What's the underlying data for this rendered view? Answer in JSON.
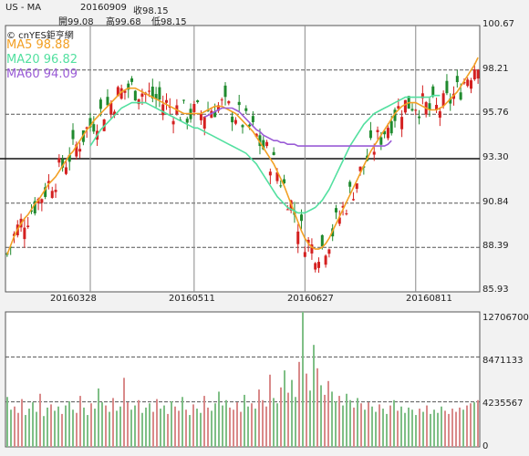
{
  "header": {
    "symbol": "US - MA",
    "date": "20160909",
    "close_label": "收98.15",
    "open_label": "開99.08",
    "high_label": "高99.68",
    "low_label": "低98.15"
  },
  "chart_data": [
    {
      "type": "candlestick",
      "brand": "© cnYES鉅亨網",
      "legend": [
        {
          "label": "MA5 98.88",
          "color": "#f2a024"
        },
        {
          "label": "MA20 96.82",
          "color": "#53e0a0"
        },
        {
          "label": "MA60 94.09",
          "color": "#9a5cd6"
        }
      ],
      "ylim": [
        85.93,
        100.67
      ],
      "yticks": [
        "100.67",
        "98.21",
        "95.76",
        "93.30",
        "90.84",
        "88.39",
        "85.93"
      ],
      "reference_line": 93.3,
      "xticks": [
        {
          "label": "20160328",
          "index": 24
        },
        {
          "label": "20160511",
          "index": 54
        },
        {
          "label": "20160627",
          "index": 86
        },
        {
          "label": "20160811",
          "index": 118
        }
      ],
      "series": [
        {
          "name": "MA5",
          "values": [
            88.0,
            88.5,
            89.0,
            89.4,
            89.7,
            90.0,
            90.2,
            90.5,
            90.8,
            91.0,
            91.3,
            91.6,
            91.9,
            92.1,
            92.3,
            92.6,
            92.9,
            93.2,
            93.5,
            93.7,
            94.0,
            94.3,
            94.6,
            94.9,
            95.1,
            95.4,
            95.6,
            95.8,
            96.0,
            96.2,
            96.4,
            96.6,
            96.8,
            97.0,
            97.1,
            97.2,
            97.2,
            97.2,
            97.1,
            97.0,
            96.9,
            96.8,
            96.7,
            96.6,
            96.5,
            96.4,
            96.3,
            96.2,
            96.1,
            96.0,
            95.9,
            95.8,
            95.8,
            95.8,
            95.8,
            95.8,
            95.8,
            95.9,
            96.0,
            96.1,
            96.2,
            96.2,
            96.2,
            96.1,
            96.0,
            95.9,
            95.8,
            95.6,
            95.4,
            95.2,
            95.0,
            94.8,
            94.5,
            94.2,
            93.9,
            93.6,
            93.3,
            93.0,
            92.6,
            92.2,
            91.8,
            91.3,
            90.8,
            90.3,
            89.8,
            89.3,
            88.9,
            88.6,
            88.4,
            88.3,
            88.3,
            88.4,
            88.6,
            88.9,
            89.3,
            89.7,
            90.1,
            90.5,
            90.9,
            91.3,
            91.7,
            92.1,
            92.5,
            92.9,
            93.3,
            93.7,
            94.0,
            94.3,
            94.6,
            94.9,
            95.2,
            95.5,
            95.8,
            96.0,
            96.2,
            96.3,
            96.4,
            96.4,
            96.4,
            96.3,
            96.2,
            96.1,
            96.0,
            96.0,
            96.0,
            96.1,
            96.2,
            96.4,
            96.6,
            96.8,
            97.0,
            97.3,
            97.6,
            97.9,
            98.2,
            98.5,
            98.9
          ]
        },
        {
          "name": "MA20",
          "values": [
            null,
            null,
            null,
            null,
            null,
            null,
            null,
            null,
            null,
            null,
            null,
            null,
            null,
            null,
            null,
            null,
            null,
            null,
            null,
            null,
            null,
            null,
            null,
            null,
            94.0,
            94.3,
            94.6,
            94.9,
            95.1,
            95.3,
            95.5,
            95.7,
            95.9,
            96.1,
            96.2,
            96.3,
            96.4,
            96.4,
            96.4,
            96.4,
            96.4,
            96.3,
            96.2,
            96.1,
            96.0,
            95.9,
            95.8,
            95.7,
            95.6,
            95.5,
            95.4,
            95.3,
            95.2,
            95.1,
            95.0,
            95.0,
            94.9,
            94.8,
            94.7,
            94.6,
            94.5,
            94.4,
            94.3,
            94.2,
            94.1,
            94.0,
            93.9,
            93.8,
            93.7,
            93.6,
            93.4,
            93.2,
            93.0,
            92.7,
            92.4,
            92.1,
            91.8,
            91.5,
            91.2,
            91.0,
            90.8,
            90.6,
            90.5,
            90.4,
            90.3,
            90.3,
            90.3,
            90.4,
            90.5,
            90.6,
            90.8,
            91.0,
            91.3,
            91.6,
            92.0,
            92.4,
            92.8,
            93.2,
            93.6,
            94.0,
            94.3,
            94.6,
            94.9,
            95.2,
            95.4,
            95.6,
            95.8,
            95.9,
            96.0,
            96.1,
            96.2,
            96.3,
            96.4,
            96.5,
            96.6,
            96.7,
            96.7,
            96.7,
            96.7,
            96.7,
            96.7,
            96.7,
            96.7,
            96.8,
            96.8,
            96.8
          ]
        },
        {
          "name": "MA60",
          "values": [
            null,
            null,
            null,
            null,
            null,
            null,
            null,
            null,
            null,
            null,
            null,
            null,
            null,
            null,
            null,
            null,
            null,
            null,
            null,
            null,
            null,
            null,
            null,
            null,
            null,
            null,
            null,
            null,
            null,
            null,
            null,
            null,
            null,
            null,
            null,
            null,
            null,
            null,
            null,
            null,
            null,
            null,
            null,
            null,
            null,
            null,
            null,
            null,
            null,
            null,
            null,
            null,
            null,
            null,
            null,
            null,
            null,
            95.6,
            95.7,
            95.8,
            95.9,
            96.0,
            96.1,
            96.1,
            96.1,
            96.1,
            96.0,
            95.9,
            95.7,
            95.5,
            95.3,
            95.1,
            94.9,
            94.8,
            94.6,
            94.5,
            94.4,
            94.3,
            94.3,
            94.2,
            94.2,
            94.1,
            94.1,
            94.1,
            94.0,
            94.0,
            94.0,
            94.0,
            94.0,
            94.0,
            94.0,
            94.0,
            94.0,
            94.0,
            94.0,
            94.0,
            94.0,
            94.0,
            94.0,
            94.0,
            94.0,
            94.0,
            94.0,
            94.0,
            94.0,
            94.0,
            94.0,
            94.0,
            94.0,
            94.0,
            94.1,
            94.3
          ]
        }
      ]
    },
    {
      "type": "bar",
      "title": "volume",
      "ylim": [
        0,
        12706700
      ],
      "yticks": [
        "12706700",
        "8471133",
        "4235567",
        "0"
      ],
      "values": [
        4700000,
        3500000,
        3800000,
        3200000,
        4500000,
        3000000,
        3600000,
        4200000,
        3300000,
        5000000,
        2900000,
        3700000,
        4000000,
        3400000,
        3800000,
        3100000,
        3900000,
        4300000,
        3500000,
        3200000,
        4800000,
        3700000,
        3000000,
        4100000,
        3600000,
        5500000,
        4200000,
        3900000,
        3300000,
        4600000,
        3400000,
        3800000,
        6500000,
        4200000,
        3500000,
        3900000,
        4400000,
        3200000,
        3700000,
        4100000,
        3300000,
        4500000,
        3600000,
        3900000,
        3100000,
        4300000,
        3800000,
        3400000,
        4700000,
        3500000,
        3000000,
        4000000,
        3600000,
        3200000,
        4800000,
        3700000,
        3400000,
        4100000,
        5200000,
        3900000,
        4400000,
        3700000,
        3500000,
        4200000,
        3300000,
        4900000,
        3800000,
        4100000,
        3600000,
        5400000,
        4400000,
        3800000,
        6800000,
        4600000,
        4100000,
        5600000,
        7200000,
        5100000,
        6300000,
        4700000,
        8000000,
        12706700,
        6900000,
        5300000,
        9600000,
        7400000,
        5800000,
        4900000,
        6200000,
        5200000,
        4300000,
        4800000,
        3900000,
        5000000,
        4400000,
        3700000,
        4600000,
        4100000,
        3500000,
        4200000,
        3800000,
        3300000,
        4000000,
        3600000,
        3100000,
        3900000,
        4400000,
        3400000,
        3800000,
        3200000,
        3700000,
        3500000,
        3000000,
        3600000,
        3300000,
        3900000,
        3100000,
        3500000,
        3200000,
        3800000,
        3400000,
        3100000,
        3600000,
        3300000,
        3700000,
        3500000,
        3900000,
        4100000,
        4200000,
        4400000
      ]
    }
  ]
}
